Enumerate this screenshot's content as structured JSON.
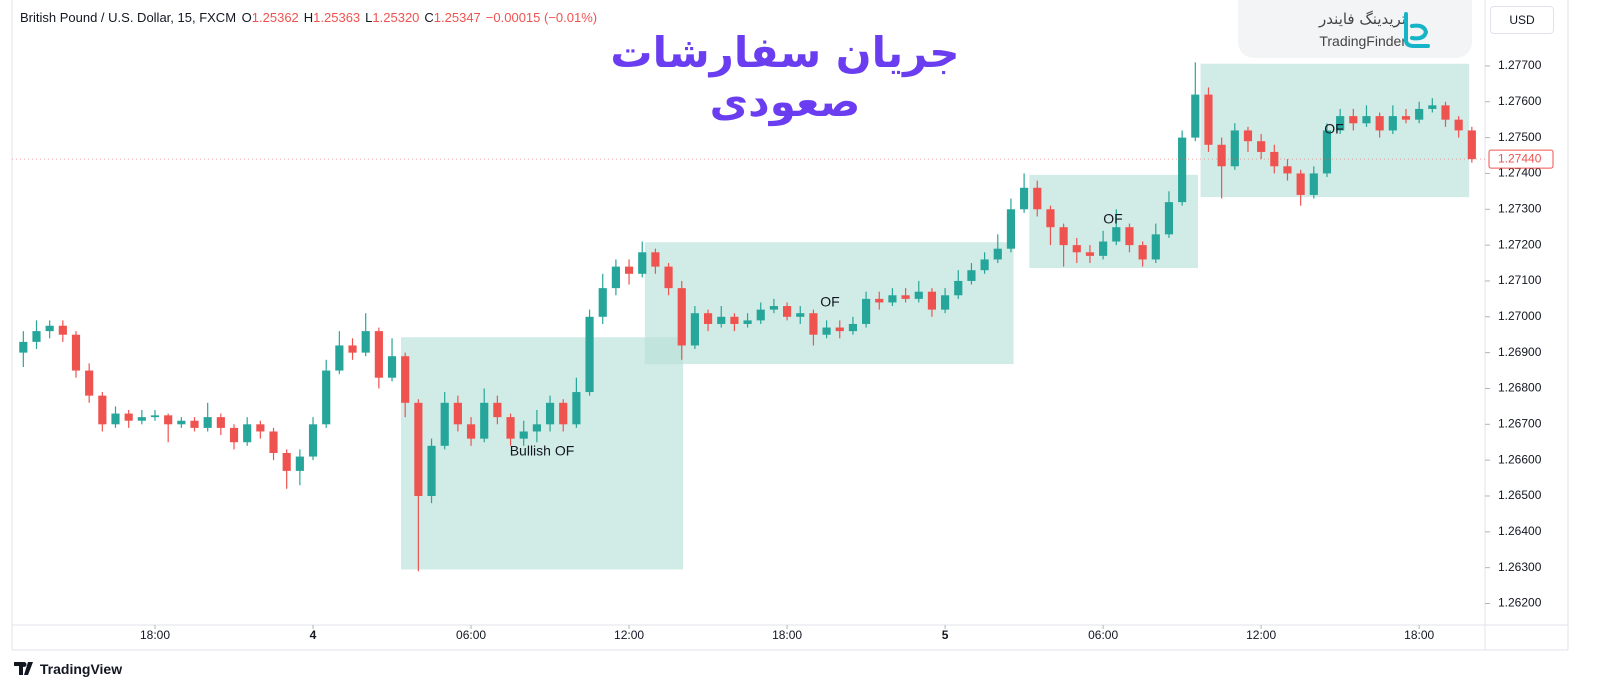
{
  "header": {
    "symbol": "British Pound / U.S. Dollar, 15, FXCM",
    "ohlc": [
      {
        "key": "O",
        "value": "1.25362"
      },
      {
        "key": "H",
        "value": "1.25363"
      },
      {
        "key": "L",
        "value": "1.25320"
      },
      {
        "key": "C",
        "value": "1.25347"
      }
    ],
    "change": "−0.00015 (−0.01%)"
  },
  "brand": {
    "persian": "تریدینگ فایندر",
    "english": "TradingFinder"
  },
  "currency_button": "USD",
  "footer": "TradingView",
  "chart_data": {
    "type": "candlestick",
    "title": "جریان سفارشات صعودی",
    "x": [
      -11,
      -10.5,
      -10,
      -9.5,
      -9,
      -8.5,
      -8,
      -7.5,
      -7,
      -6.5,
      -6,
      -5.5,
      -5,
      -4.5,
      -4,
      -3.5,
      -3,
      -2.5,
      -2,
      -1.5,
      -1,
      -0.5,
      0,
      0.5,
      1,
      1.5,
      2,
      2.5,
      3,
      3.5,
      4,
      4.5,
      5,
      5.5,
      6,
      6.5,
      7,
      7.5,
      8,
      8.5,
      9,
      9.5,
      10,
      10.5,
      11,
      11.5,
      12,
      12.5,
      13,
      13.5,
      14,
      14.5,
      15,
      15.5,
      16,
      16.5,
      17,
      17.5,
      18,
      18.5,
      19,
      19.5,
      20,
      20.5,
      21,
      21.5,
      22,
      22.5,
      23,
      23.5,
      24,
      24.5,
      25,
      25.5,
      26,
      26.5,
      27,
      27.5,
      28,
      28.5,
      29,
      29.5,
      30,
      30.5,
      31,
      31.5,
      32,
      32.5,
      33,
      33.5,
      34,
      34.5,
      35,
      35.5,
      36,
      36.5,
      37,
      37.5,
      38,
      38.5,
      39,
      39.5,
      40,
      40.5,
      41,
      41.5,
      42,
      42.5,
      43,
      43.5,
      44
    ],
    "open": [
      1.269,
      1.2693,
      1.2696,
      1.26975,
      1.2695,
      1.2685,
      1.2678,
      1.267,
      1.2673,
      1.2671,
      1.2672,
      1.26725,
      1.267,
      1.2671,
      1.2669,
      1.2672,
      1.2669,
      1.2665,
      1.267,
      1.2668,
      1.2662,
      1.2657,
      1.2661,
      1.267,
      1.2685,
      1.2692,
      1.269,
      1.2696,
      1.2683,
      1.2689,
      1.2676,
      1.265,
      1.2664,
      1.2676,
      1.267,
      1.2666,
      1.2676,
      1.2672,
      1.2666,
      1.2668,
      1.267,
      1.2676,
      1.267,
      1.2679,
      1.27,
      1.2708,
      1.2714,
      1.2712,
      1.2718,
      1.2714,
      1.2708,
      1.2692,
      1.2701,
      1.2698,
      1.27,
      1.2698,
      1.2699,
      1.2702,
      1.2703,
      1.27,
      1.2701,
      1.2695,
      1.2697,
      1.2696,
      1.2698,
      1.2705,
      1.2704,
      1.2706,
      1.2705,
      1.2707,
      1.2702,
      1.2706,
      1.271,
      1.2713,
      1.2716,
      1.2719,
      1.273,
      1.2736,
      1.273,
      1.2725,
      1.272,
      1.2718,
      1.2717,
      1.2721,
      1.2725,
      1.272,
      1.2716,
      1.2723,
      1.2732,
      1.275,
      1.2762,
      1.2748,
      1.2742,
      1.2752,
      1.2749,
      1.2746,
      1.2742,
      1.274,
      1.2734,
      1.274,
      1.2752,
      1.2756,
      1.2754,
      1.2756,
      1.2752,
      1.2756,
      1.2755,
      1.2758,
      1.2759,
      1.2755,
      1.2752
    ],
    "high": [
      1.2696,
      1.2699,
      1.2699,
      1.2699,
      1.2696,
      1.2687,
      1.2679,
      1.2675,
      1.2674,
      1.2674,
      1.2674,
      1.2673,
      1.2672,
      1.2672,
      1.2676,
      1.2673,
      1.267,
      1.2672,
      1.2671,
      1.2669,
      1.2663,
      1.2663,
      1.2672,
      1.2688,
      1.2696,
      1.2694,
      1.2701,
      1.2697,
      1.2694,
      1.269,
      1.2677,
      1.2666,
      1.2679,
      1.2678,
      1.2672,
      1.268,
      1.2678,
      1.2673,
      1.2671,
      1.2674,
      1.2678,
      1.2677,
      1.2683,
      1.2702,
      1.2712,
      1.2716,
      1.2716,
      1.2721,
      1.2719,
      1.2715,
      1.271,
      1.2703,
      1.2702,
      1.2703,
      1.2701,
      1.2701,
      1.2704,
      1.2705,
      1.2704,
      1.2703,
      1.2702,
      1.2699,
      1.2699,
      1.27,
      1.2707,
      1.2707,
      1.2708,
      1.2708,
      1.271,
      1.2708,
      1.2708,
      1.2713,
      1.2715,
      1.2718,
      1.2723,
      1.2733,
      1.274,
      1.2738,
      1.2731,
      1.2726,
      1.2722,
      1.272,
      1.2724,
      1.273,
      1.2726,
      1.2721,
      1.2726,
      1.2735,
      1.2752,
      1.2771,
      1.2764,
      1.275,
      1.2754,
      1.2753,
      1.2751,
      1.2748,
      1.2744,
      1.2741,
      1.2742,
      1.2754,
      1.2758,
      1.2758,
      1.2759,
      1.2757,
      1.2759,
      1.2758,
      1.276,
      1.2761,
      1.276,
      1.2756,
      1.2753
    ],
    "low": [
      1.2686,
      1.2691,
      1.2694,
      1.2693,
      1.2683,
      1.2676,
      1.2668,
      1.2669,
      1.2669,
      1.267,
      1.2671,
      1.2665,
      1.2669,
      1.2668,
      1.2668,
      1.2667,
      1.2663,
      1.2664,
      1.2666,
      1.266,
      1.2652,
      1.2653,
      1.266,
      1.2669,
      1.2684,
      1.2688,
      1.2689,
      1.268,
      1.2682,
      1.2672,
      1.2629,
      1.2648,
      1.2663,
      1.2668,
      1.2664,
      1.2665,
      1.267,
      1.2664,
      1.2664,
      1.2665,
      1.2668,
      1.2668,
      1.2669,
      1.2678,
      1.2698,
      1.2706,
      1.2709,
      1.2711,
      1.2712,
      1.2706,
      1.2688,
      1.2691,
      1.2696,
      1.2697,
      1.2696,
      1.2697,
      1.2698,
      1.2701,
      1.2699,
      1.2698,
      1.2692,
      1.2694,
      1.2694,
      1.2695,
      1.2697,
      1.2702,
      1.2703,
      1.2704,
      1.2704,
      1.27,
      1.2701,
      1.2705,
      1.2709,
      1.2712,
      1.2715,
      1.2718,
      1.2729,
      1.2728,
      1.272,
      1.2714,
      1.2715,
      1.2715,
      1.2716,
      1.272,
      1.2718,
      1.2714,
      1.2715,
      1.2722,
      1.2731,
      1.2749,
      1.2746,
      1.2733,
      1.2741,
      1.2746,
      1.2744,
      1.274,
      1.2738,
      1.2731,
      1.2733,
      1.2739,
      1.2751,
      1.2752,
      1.2753,
      1.275,
      1.2751,
      1.2754,
      1.2754,
      1.2757,
      1.2753,
      1.275,
      1.2743
    ],
    "close": [
      1.2693,
      1.2696,
      1.26975,
      1.2695,
      1.2685,
      1.2678,
      1.267,
      1.2673,
      1.2671,
      1.2672,
      1.26725,
      1.267,
      1.2671,
      1.2669,
      1.2672,
      1.2669,
      1.2665,
      1.267,
      1.2668,
      1.2662,
      1.2657,
      1.2661,
      1.267,
      1.2685,
      1.2692,
      1.269,
      1.2696,
      1.2683,
      1.2689,
      1.2676,
      1.265,
      1.2664,
      1.2676,
      1.267,
      1.2666,
      1.2676,
      1.2672,
      1.2666,
      1.2668,
      1.267,
      1.2676,
      1.267,
      1.2679,
      1.27,
      1.2708,
      1.2714,
      1.2712,
      1.2718,
      1.2714,
      1.2708,
      1.2692,
      1.2701,
      1.2698,
      1.27,
      1.2698,
      1.2699,
      1.2702,
      1.2703,
      1.27,
      1.2701,
      1.2695,
      1.2697,
      1.2696,
      1.2698,
      1.2705,
      1.2704,
      1.2706,
      1.2705,
      1.2707,
      1.2702,
      1.2706,
      1.271,
      1.2713,
      1.2716,
      1.2719,
      1.273,
      1.2736,
      1.273,
      1.2725,
      1.272,
      1.2718,
      1.2717,
      1.2721,
      1.2725,
      1.272,
      1.2716,
      1.2723,
      1.2732,
      1.275,
      1.2762,
      1.2748,
      1.2742,
      1.2752,
      1.2749,
      1.2746,
      1.2742,
      1.274,
      1.2734,
      1.274,
      1.2752,
      1.2756,
      1.2754,
      1.2756,
      1.2752,
      1.2756,
      1.2755,
      1.2758,
      1.2759,
      1.2755,
      1.2752,
      1.2744
    ],
    "up_color": "#26a69a",
    "down_color": "#ef5350",
    "zone_color": "#b9e0d8",
    "zones": [
      {
        "label": "Bullish OF",
        "x0": 3.34,
        "x1": 14.05,
        "y0": 1.26295,
        "y1": 1.26943
      },
      {
        "label": "OF",
        "x0": 12.6,
        "x1": 26.6,
        "y0": 1.26868,
        "y1": 1.27208
      },
      {
        "label": "OF",
        "x0": 27.2,
        "x1": 33.6,
        "y0": 1.27136,
        "y1": 1.27396
      },
      {
        "label": "OF",
        "x0": 33.7,
        "x1": 43.9,
        "y0": 1.27334,
        "y1": 1.27706
      }
    ],
    "last_price": {
      "value": 1.2744,
      "label": "1.27440"
    },
    "xlim": [
      -11.43,
      44.5
    ],
    "ylim": [
      1.2614,
      1.2787
    ],
    "xticks": [
      {
        "value": -6,
        "label": "18:00"
      },
      {
        "value": 0,
        "label": "4"
      },
      {
        "value": 6,
        "label": "06:00"
      },
      {
        "value": 12,
        "label": "12:00"
      },
      {
        "value": 18,
        "label": "18:00"
      },
      {
        "value": 24,
        "label": "5"
      },
      {
        "value": 30,
        "label": "06:00"
      },
      {
        "value": 36,
        "label": "12:00"
      },
      {
        "value": 42,
        "label": "18:00"
      }
    ],
    "yticks": [
      {
        "value": 1.262,
        "label": "1.26200"
      },
      {
        "value": 1.263,
        "label": "1.26300"
      },
      {
        "value": 1.264,
        "label": "1.26400"
      },
      {
        "value": 1.265,
        "label": "1.26500"
      },
      {
        "value": 1.266,
        "label": "1.26600"
      },
      {
        "value": 1.267,
        "label": "1.26700"
      },
      {
        "value": 1.268,
        "label": "1.26800"
      },
      {
        "value": 1.269,
        "label": "1.26900"
      },
      {
        "value": 1.27,
        "label": "1.27000"
      },
      {
        "value": 1.271,
        "label": "1.27100"
      },
      {
        "value": 1.272,
        "label": "1.27200"
      },
      {
        "value": 1.273,
        "label": "1.27300"
      },
      {
        "value": 1.274,
        "label": "1.27400"
      },
      {
        "value": 1.275,
        "label": "1.27500"
      },
      {
        "value": 1.276,
        "label": "1.27600"
      },
      {
        "value": 1.277,
        "label": "1.27700"
      }
    ],
    "grid": false
  }
}
